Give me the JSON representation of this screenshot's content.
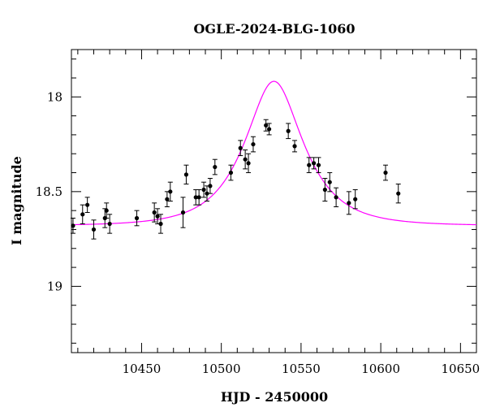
{
  "chart_data": {
    "type": "scatter",
    "title": "OGLE-2024-BLG-1060",
    "xlabel": "HJD - 2450000",
    "ylabel": "I magnitude",
    "xlim": [
      10406,
      10660
    ],
    "ylim": [
      19.35,
      17.75
    ],
    "y_inverted": true,
    "x_ticks": [
      10450,
      10500,
      10550,
      10600,
      10650
    ],
    "x_tick_labels": [
      "10450",
      "10500",
      "10550",
      "10600",
      "10650"
    ],
    "y_ticks": [
      18,
      18.5,
      19
    ],
    "y_tick_labels": [
      "18",
      "18.5",
      "19"
    ],
    "grid": false,
    "colors": {
      "points": "#000000",
      "model": "#ff00ff"
    },
    "series": [
      {
        "type": "scatter_errorbar",
        "x": [
          10407,
          10413,
          10416,
          10420,
          10427,
          10428,
          10430,
          10447,
          10458,
          10460,
          10462,
          10466,
          10468,
          10476,
          10478,
          10484,
          10486,
          10489,
          10491,
          10493,
          10496,
          10506,
          10512,
          10515,
          10517,
          10520,
          10528,
          10530,
          10542,
          10546,
          10555,
          10558,
          10561,
          10565,
          10568,
          10572,
          10580,
          10584,
          10603,
          10611
        ],
        "y": [
          18.68,
          18.62,
          18.57,
          18.7,
          18.64,
          18.6,
          18.67,
          18.64,
          18.61,
          18.63,
          18.67,
          18.54,
          18.5,
          18.61,
          18.41,
          18.53,
          18.53,
          18.49,
          18.51,
          18.47,
          18.37,
          18.4,
          18.27,
          18.33,
          18.35,
          18.25,
          18.15,
          18.17,
          18.18,
          18.26,
          18.36,
          18.35,
          18.36,
          18.49,
          18.45,
          18.53,
          18.56,
          18.54,
          18.4,
          18.51
        ],
        "yerr": [
          0.04,
          0.05,
          0.04,
          0.05,
          0.05,
          0.04,
          0.05,
          0.04,
          0.05,
          0.04,
          0.05,
          0.04,
          0.05,
          0.08,
          0.05,
          0.04,
          0.04,
          0.04,
          0.04,
          0.04,
          0.04,
          0.04,
          0.04,
          0.05,
          0.05,
          0.04,
          0.03,
          0.03,
          0.04,
          0.03,
          0.04,
          0.03,
          0.04,
          0.06,
          0.05,
          0.05,
          0.06,
          0.05,
          0.04,
          0.05
        ]
      },
      {
        "type": "model_line",
        "model": "PSPL",
        "t0": 10533,
        "tE": 30,
        "u0": 0.55,
        "base_mag": 18.68
      }
    ]
  }
}
